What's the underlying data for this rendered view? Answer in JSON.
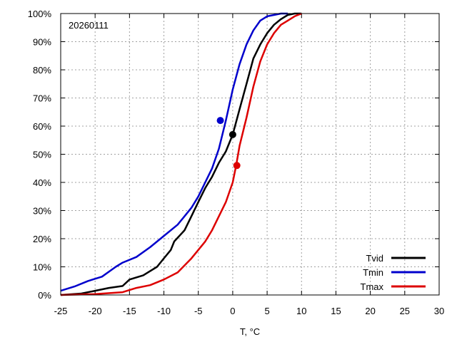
{
  "chart_data": {
    "type": "line",
    "annotation": "20260111",
    "xlabel": "T, °C",
    "ylabel": "",
    "xlim": [
      -25,
      30
    ],
    "ylim": [
      0,
      100
    ],
    "x_ticks": [
      "-25",
      "-20",
      "-15",
      "-10",
      "-5",
      "0",
      "5",
      "10",
      "15",
      "20",
      "25",
      "30"
    ],
    "y_ticks": [
      "0%",
      "10%",
      "20%",
      "30%",
      "40%",
      "50%",
      "60%",
      "70%",
      "80%",
      "90%",
      "100%"
    ],
    "grid": true,
    "legend_position": "bottom-right",
    "series": [
      {
        "name": "Tvid",
        "color": "#000000",
        "x": [
          -25,
          -22,
          -20,
          -18,
          -16,
          -15,
          -13,
          -11,
          -10,
          -9,
          -8.5,
          -7,
          -6,
          -5,
          -4,
          -3,
          -2,
          -1,
          0,
          1,
          2,
          3,
          4,
          5,
          6,
          7,
          8,
          9,
          10
        ],
        "y": [
          0,
          0.5,
          1.5,
          2.5,
          3.2,
          5.5,
          7,
          10,
          13,
          16,
          19,
          23,
          28,
          33,
          38,
          42,
          47,
          51,
          57,
          66,
          75,
          84,
          89,
          93,
          96,
          98,
          99.5,
          100,
          100
        ],
        "marker": {
          "x": 0,
          "y": 57
        }
      },
      {
        "name": "Tmin",
        "color": "#0000cc",
        "x": [
          -25,
          -23,
          -21,
          -19,
          -17,
          -16,
          -14,
          -12,
          -10,
          -8,
          -7,
          -6,
          -5,
          -4,
          -3,
          -2,
          -1,
          0,
          1,
          2,
          3,
          4,
          5,
          6,
          7,
          8
        ],
        "y": [
          1.5,
          3,
          5,
          6.5,
          10,
          11.5,
          13.5,
          17,
          21,
          25,
          28,
          31,
          35,
          40,
          45,
          52,
          62,
          73,
          82,
          89,
          94,
          97.5,
          99,
          99.5,
          100,
          100
        ],
        "marker": {
          "x": -1.8,
          "y": 62
        }
      },
      {
        "name": "Tmax",
        "color": "#dd0000",
        "x": [
          -25,
          -20,
          -16,
          -14,
          -12,
          -10,
          -8,
          -6,
          -5,
          -4,
          -3,
          -2,
          -1,
          0,
          0.5,
          1,
          2,
          3,
          4,
          5,
          6,
          7,
          8,
          9,
          10
        ],
        "y": [
          0,
          0.3,
          1,
          2.5,
          3.5,
          5.5,
          8,
          13,
          16,
          19,
          23,
          28,
          33,
          40,
          46,
          53,
          63,
          74,
          83,
          89,
          93,
          96,
          97.5,
          99,
          100
        ],
        "marker": {
          "x": 0.6,
          "y": 46
        }
      }
    ]
  }
}
